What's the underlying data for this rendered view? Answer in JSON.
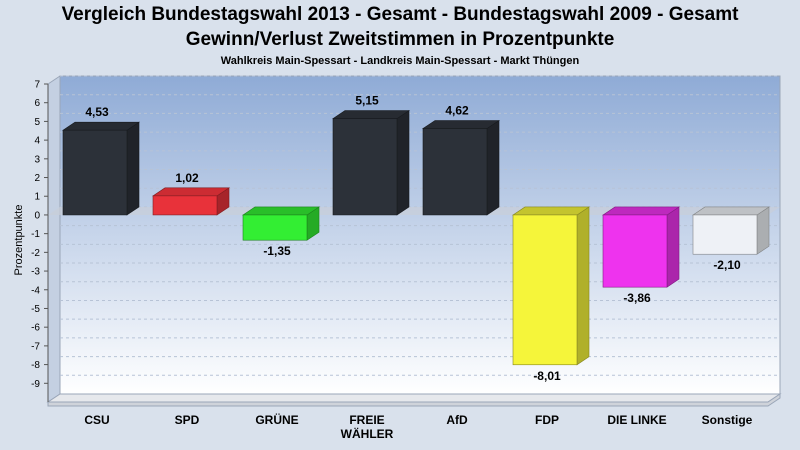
{
  "title": "Vergleich Bundestagswahl 2013 - Gesamt - Bundestagswahl 2009 - Gesamt",
  "title2": "Gewinn/Verlust Zweitstimmen in Prozentpunkte",
  "subtitle": "Wahlkreis Main-Spessart - Landkreis Main-Spessart - Markt Thüngen",
  "chart_data": {
    "type": "bar",
    "title": "Vergleich Bundestagswahl 2013 - Gesamt - Bundestagswahl 2009 - Gesamt",
    "subtitle": "Gewinn/Verlust Zweitstimmen in Prozentpunkte",
    "xlabel": "",
    "ylabel": "Prozentpunkte",
    "ylim": [
      -10,
      7
    ],
    "yticks": [
      7,
      6,
      5,
      4,
      3,
      2,
      1,
      0,
      -1,
      -2,
      -3,
      -4,
      -5,
      -6,
      -7,
      -8,
      -9
    ],
    "grid": true,
    "categories": [
      [
        "CSU"
      ],
      [
        "SPD"
      ],
      [
        "GRÜNE"
      ],
      [
        "FREIE",
        "WÄHLER"
      ],
      [
        "AfD"
      ],
      [
        "FDP"
      ],
      [
        "DIE LINKE"
      ],
      [
        "Sonstige"
      ]
    ],
    "values": [
      4.53,
      1.02,
      -1.35,
      5.15,
      4.62,
      -8.01,
      -3.86,
      -2.1
    ],
    "value_labels": [
      "4,53",
      "1,02",
      "-1,35",
      "5,15",
      "4,62",
      "-8,01",
      "-3,86",
      "-2,10"
    ],
    "colors": [
      "#2c3139",
      "#e8323a",
      "#33ee33",
      "#2c3139",
      "#2c3139",
      "#f5f53a",
      "#ee33ee",
      "#eef1f6"
    ]
  }
}
